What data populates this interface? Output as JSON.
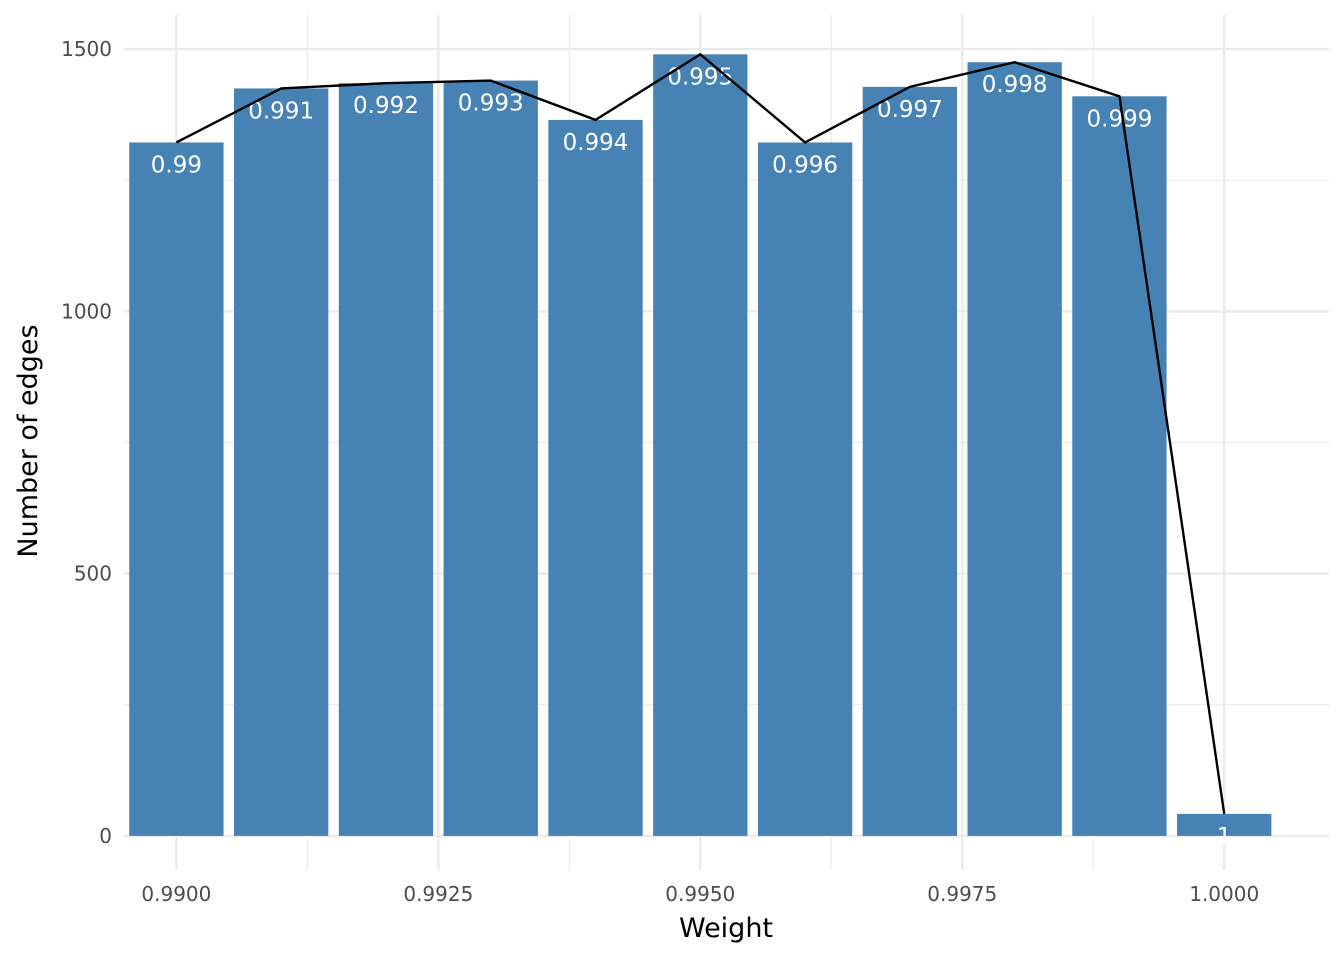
{
  "chart_data": {
    "type": "bar",
    "xlabel": "Weight",
    "ylabel": "Number of edges",
    "xlim": [
      0.9895,
      1.001
    ],
    "ylim": [
      -65,
      1565
    ],
    "x_ticks": [
      "0.9900",
      "0.9925",
      "0.9950",
      "0.9975",
      "1.0000"
    ],
    "x_tick_values": [
      0.99,
      0.9925,
      0.995,
      0.9975,
      1.0
    ],
    "y_ticks": [
      "0",
      "500",
      "1000",
      "1500"
    ],
    "y_tick_values": [
      0,
      500,
      1000,
      1500
    ],
    "bar_width": 0.0009,
    "x": [
      0.99,
      0.991,
      0.992,
      0.993,
      0.994,
      0.995,
      0.996,
      0.997,
      0.998,
      0.999,
      1.0
    ],
    "labels": [
      "0.99",
      "0.991",
      "0.992",
      "0.993",
      "0.994",
      "0.995",
      "0.996",
      "0.997",
      "0.998",
      "0.999",
      "1"
    ],
    "values": [
      1322,
      1425,
      1435,
      1440,
      1365,
      1490,
      1322,
      1428,
      1475,
      1410,
      42
    ],
    "line_overlay": true,
    "grid": true,
    "colors": {
      "bar": "#4682b4",
      "line": "#000000",
      "grid": "#ebebeb",
      "label": "#ffffff"
    }
  }
}
